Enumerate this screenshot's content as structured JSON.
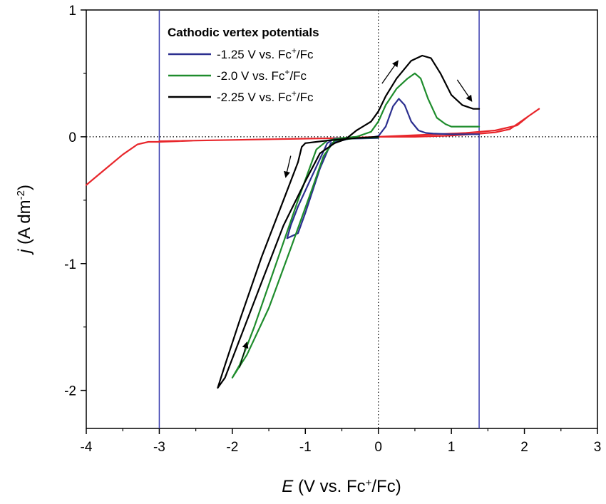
{
  "chart_data": {
    "type": "line",
    "title": "",
    "xlabel": {
      "symbol": "E",
      "text": " (V vs. Fc",
      "sup": "+",
      "tail": "/Fc)"
    },
    "ylabel": {
      "symbol": "j",
      "text": " (A dm",
      "sup": "-2",
      "tail": ")"
    },
    "xlim": [
      -4,
      3
    ],
    "ylim": [
      -2.3,
      1
    ],
    "xticks": [
      -4,
      -3,
      -2,
      -1,
      0,
      1,
      2,
      3
    ],
    "xtick_labels": [
      "-4",
      "-3",
      "-2",
      "-1",
      "0",
      "1",
      "2",
      "3"
    ],
    "yticks": [
      -2,
      -1,
      0,
      1
    ],
    "ytick_labels": [
      "-2",
      "-1",
      "0",
      "1"
    ],
    "reference_lines": [
      {
        "orientation": "horizontal",
        "value": 0,
        "style": "dotted",
        "color": "#000000"
      },
      {
        "orientation": "vertical",
        "value": 0,
        "style": "dotted",
        "color": "#000000"
      },
      {
        "orientation": "vertical",
        "value": -3,
        "style": "solid",
        "color": "#3b3fb0"
      },
      {
        "orientation": "vertical",
        "value": 1.38,
        "style": "solid",
        "color": "#3b3fb0"
      }
    ],
    "legend": {
      "title": "Cathodic vertex potentials",
      "placement": "top-center",
      "entries": [
        {
          "prefix": "-1.25 V vs. Fc",
          "sup": "+",
          "suffix": "/Fc",
          "color": "#2b2f8f"
        },
        {
          "prefix": "-2.0 V vs. Fc",
          "sup": "+",
          "suffix": "/Fc",
          "color": "#1e8c2c"
        },
        {
          "prefix": "-2.25 V vs. Fc",
          "sup": "+",
          "suffix": "/Fc",
          "color": "#000000"
        }
      ]
    },
    "series": [
      {
        "color": "#e8262b",
        "x": [
          -4.0,
          -3.75,
          -3.5,
          -3.3,
          -3.15,
          -3.0,
          -2.5,
          -2.0,
          -1.5,
          -1.0,
          -0.5,
          0.0,
          0.5,
          1.0,
          1.4,
          1.6,
          1.8,
          1.9,
          2.05,
          2.2,
          2.05,
          1.9,
          1.6,
          1.2,
          0.8,
          0.4,
          0.0,
          -0.5,
          -1.0,
          -2.0,
          -3.0
        ],
        "y": [
          -0.38,
          -0.26,
          -0.14,
          -0.06,
          -0.04,
          -0.04,
          -0.03,
          -0.025,
          -0.02,
          -0.015,
          -0.01,
          0.0,
          0.0,
          0.01,
          0.025,
          0.035,
          0.06,
          0.1,
          0.16,
          0.22,
          0.16,
          0.09,
          0.05,
          0.03,
          0.02,
          0.01,
          0.0,
          -0.01,
          -0.015,
          -0.025,
          -0.035
        ]
      },
      {
        "color": "#2b2f8f",
        "x": [
          0.0,
          -0.4,
          -0.65,
          -0.8,
          -1.0,
          -1.1,
          -1.25,
          -1.2,
          -1.1,
          -0.9,
          -0.7,
          -0.6,
          -0.5,
          -0.3,
          -0.1,
          0.0,
          0.1,
          0.2,
          0.28,
          0.36,
          0.45,
          0.55,
          0.65,
          0.75,
          1.0,
          1.38
        ],
        "y": [
          -0.01,
          -0.015,
          -0.05,
          -0.25,
          -0.6,
          -0.76,
          -0.8,
          -0.7,
          -0.55,
          -0.3,
          -0.05,
          -0.015,
          -0.01,
          -0.01,
          -0.005,
          0.005,
          0.08,
          0.24,
          0.3,
          0.25,
          0.12,
          0.05,
          0.03,
          0.025,
          0.02,
          0.02
        ]
      },
      {
        "color": "#1e8c2c",
        "x": [
          0.0,
          -0.3,
          -0.6,
          -0.75,
          -0.9,
          -1.2,
          -1.5,
          -1.8,
          -2.0,
          -1.9,
          -1.7,
          -1.4,
          -1.1,
          -0.85,
          -0.7,
          -0.5,
          -0.3,
          -0.1,
          0.0,
          0.1,
          0.25,
          0.4,
          0.5,
          0.58,
          0.68,
          0.8,
          0.92,
          1.0,
          1.05,
          1.38
        ],
        "y": [
          -0.005,
          -0.01,
          -0.03,
          -0.15,
          -0.4,
          -0.88,
          -1.35,
          -1.72,
          -1.9,
          -1.8,
          -1.5,
          -1.0,
          -0.5,
          -0.1,
          -0.03,
          -0.01,
          0.0,
          0.04,
          0.12,
          0.25,
          0.38,
          0.46,
          0.5,
          0.46,
          0.3,
          0.15,
          0.1,
          0.08,
          0.08,
          0.08
        ]
      },
      {
        "color": "#000000",
        "x": [
          0.0,
          -0.3,
          -0.5,
          -0.7,
          -0.85,
          -1.0,
          -1.05,
          -1.1,
          -1.3,
          -1.6,
          -1.9,
          -2.1,
          -2.2,
          -2.1,
          -1.9,
          -1.6,
          -1.3,
          -1.0,
          -0.8,
          -0.6,
          -0.45,
          -0.3,
          -0.1,
          0.0,
          0.1,
          0.25,
          0.45,
          0.6,
          0.72,
          0.85,
          1.0,
          1.15,
          1.3,
          1.38
        ],
        "y": [
          0.0,
          -0.01,
          -0.02,
          -0.03,
          -0.04,
          -0.05,
          -0.08,
          -0.2,
          -0.5,
          -0.95,
          -1.45,
          -1.8,
          -1.98,
          -1.9,
          -1.6,
          -1.15,
          -0.7,
          -0.35,
          -0.13,
          -0.05,
          -0.02,
          0.05,
          0.12,
          0.2,
          0.32,
          0.46,
          0.6,
          0.64,
          0.62,
          0.5,
          0.33,
          0.25,
          0.22,
          0.22
        ]
      }
    ],
    "annotations": [
      {
        "kind": "arrow",
        "from": [
          0.05,
          0.42
        ],
        "to": [
          0.27,
          0.6
        ]
      },
      {
        "kind": "arrow",
        "from": [
          1.08,
          0.45
        ],
        "to": [
          1.28,
          0.28
        ]
      },
      {
        "kind": "arrow",
        "from": [
          -1.2,
          -0.15
        ],
        "to": [
          -1.27,
          -0.32
        ]
      },
      {
        "kind": "arrow",
        "from": [
          -1.9,
          -1.82
        ],
        "to": [
          -1.8,
          -1.62
        ]
      }
    ]
  }
}
